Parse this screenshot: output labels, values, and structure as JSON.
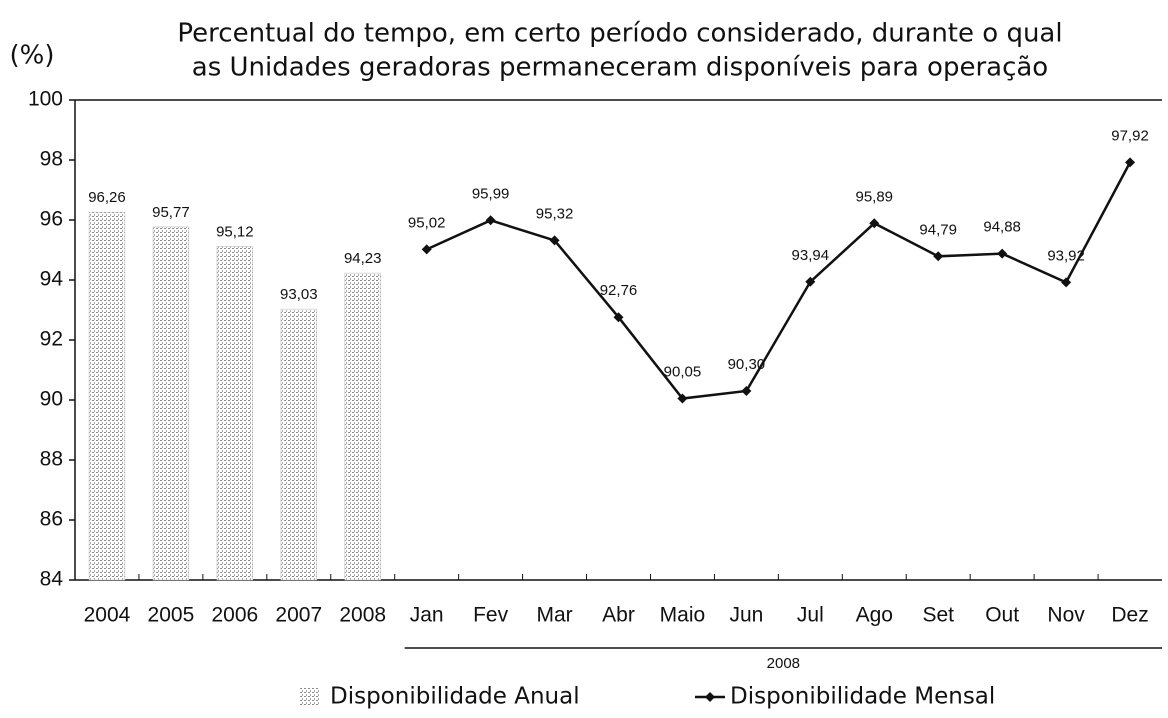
{
  "chart_data": {
    "type": "combo",
    "title": [
      "Percentual do tempo, em certo período considerado, durante o qual",
      "as Unidades geradoras permaneceram disponíveis para operação"
    ],
    "y_label": "(%)",
    "x_group_label": "2008",
    "categories": [
      "2004",
      "2005",
      "2006",
      "2007",
      "2008",
      "Jan",
      "Fev",
      "Mar",
      "Abr",
      "Maio",
      "Jun",
      "Jul",
      "Ago",
      "Set",
      "Out",
      "Nov",
      "Dez"
    ],
    "series": [
      {
        "name": "Disponibilidade Anual",
        "type": "bar",
        "color": "#b8b8b8",
        "values": [
          96.26,
          95.77,
          95.12,
          93.03,
          94.23,
          null,
          null,
          null,
          null,
          null,
          null,
          null,
          null,
          null,
          null,
          null,
          null
        ],
        "value_labels": [
          "96,26",
          "95,77",
          "95,12",
          "93,03",
          "94,23",
          null,
          null,
          null,
          null,
          null,
          null,
          null,
          null,
          null,
          null,
          null,
          null
        ]
      },
      {
        "name": "Disponibilidade Mensal",
        "type": "line",
        "color": "#111111",
        "values": [
          null,
          null,
          null,
          null,
          null,
          95.02,
          95.99,
          95.32,
          92.76,
          90.05,
          90.3,
          93.94,
          95.89,
          94.79,
          94.88,
          93.92,
          97.92
        ],
        "value_labels": [
          null,
          null,
          null,
          null,
          null,
          "95,02",
          "95,99",
          "95,32",
          "92,76",
          "90,05",
          "90,30",
          "93,94",
          "95,89",
          "94,79",
          "94,88",
          "93,92",
          "97,92"
        ]
      }
    ],
    "ylim": [
      84,
      100
    ],
    "yticks": [
      84,
      86,
      88,
      90,
      92,
      94,
      96,
      98,
      100
    ],
    "grid": false
  }
}
